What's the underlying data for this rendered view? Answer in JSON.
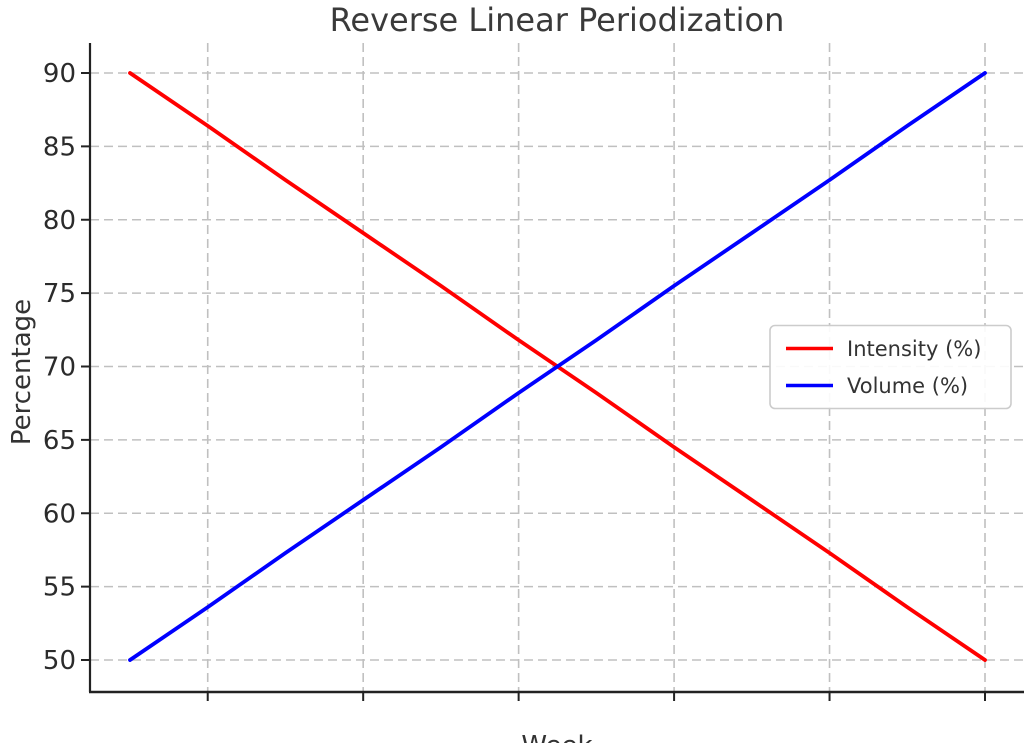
{
  "figure": {
    "background": "#ffffff"
  },
  "chart_data": {
    "type": "line",
    "title": "Reverse Linear Periodization",
    "xlabel": "Week",
    "ylabel": "Percentage",
    "x": [
      1,
      2,
      3,
      4,
      5,
      6,
      7,
      8,
      9,
      10,
      11,
      12
    ],
    "series": [
      {
        "name": "Intensity (%)",
        "color": "#ff0000",
        "values": [
          90,
          86.4,
          82.7,
          79.1,
          75.5,
          71.8,
          68.2,
          64.5,
          60.9,
          57.3,
          53.6,
          50
        ]
      },
      {
        "name": "Volume (%)",
        "color": "#0000ff",
        "values": [
          50,
          53.6,
          57.3,
          60.9,
          64.5,
          68.2,
          71.8,
          75.5,
          79.1,
          82.7,
          86.4,
          90
        ]
      }
    ],
    "xlim": [
      0.45,
      12.55
    ],
    "ylim": [
      48,
      92
    ],
    "xticks": [
      2,
      4,
      6,
      8,
      10,
      12
    ],
    "xtick_labels": [],
    "yticks": [
      50,
      55,
      60,
      65,
      70,
      75,
      80,
      85,
      90
    ],
    "ytick_labels": [
      "50",
      "55",
      "60",
      "65",
      "70",
      "75",
      "80",
      "85",
      "90"
    ],
    "grid": {
      "visible": true,
      "style": "dashed",
      "color": "#c0c0c0"
    },
    "legend": {
      "visible": true,
      "position": "center right",
      "border_color": "#cccccc",
      "background": "#ffffff"
    },
    "colors": {
      "spine": "#222222",
      "tick": "#222222",
      "title_text": "#3a3a3a",
      "label_text": "#333333"
    }
  }
}
